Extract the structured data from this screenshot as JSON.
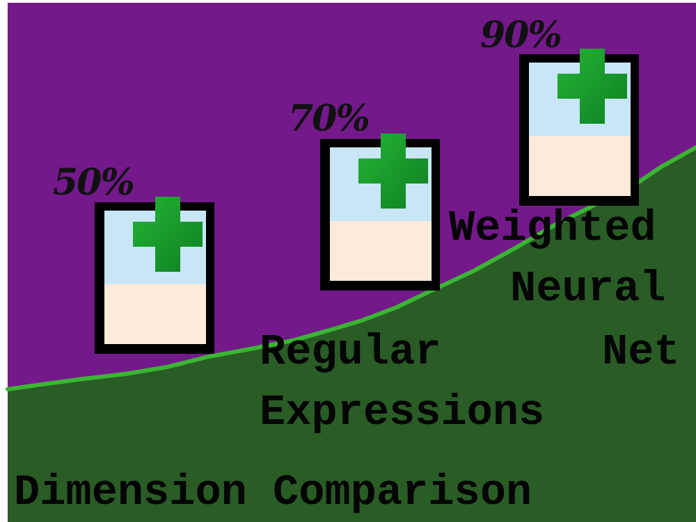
{
  "percent_labels": [
    "50%",
    "70%",
    "90%"
  ],
  "text_blocks": {
    "weighted_neural_net": [
      "Weighted",
      "Neural",
      "Net"
    ],
    "regular_expressions": [
      "Regular",
      "Expressions"
    ],
    "caption": "Dimension Comparison"
  },
  "icons": [
    "document-add-icon",
    "document-add-icon",
    "document-add-icon"
  ],
  "colors": {
    "sky": "#73198a",
    "ground": "#2a5c26",
    "ridge_line": "#3bb534",
    "frame": "#000000",
    "page_top": "#c8e6f6",
    "page_bottom": "#fdeadb",
    "plus": "#169c2a"
  }
}
